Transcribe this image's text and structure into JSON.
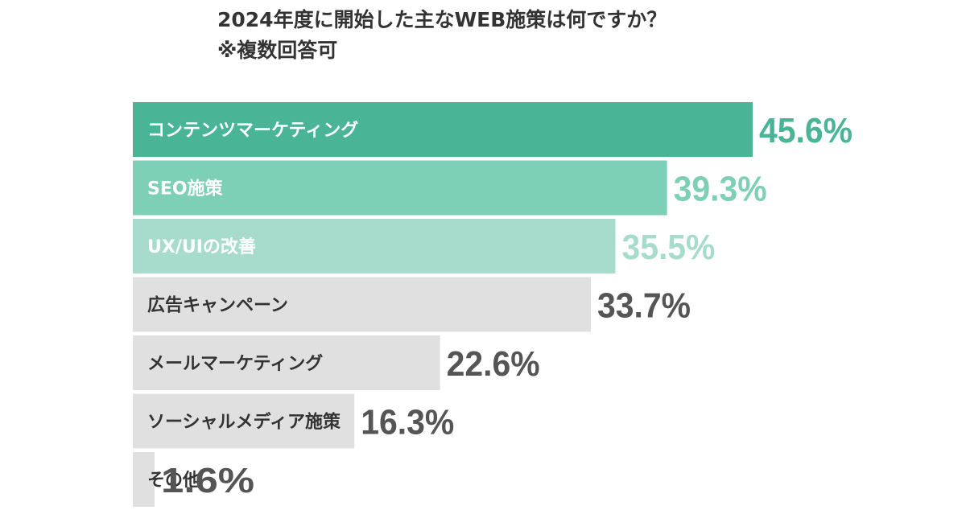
{
  "chart_data": {
    "type": "bar",
    "orientation": "horizontal",
    "title_lines": [
      "2024年度に開始した主なWEB施策は何ですか？",
      "※複数回答可"
    ],
    "categories": [
      "コンテンツマーケティング",
      "SEO施策",
      "UX/UIの改善",
      "広告キャンペーン",
      "メールマーケティング",
      "ソーシャルメディア施策",
      "その他"
    ],
    "values": [
      45.6,
      39.3,
      35.5,
      33.7,
      22.6,
      16.3,
      1.6
    ],
    "value_labels": [
      "45.6%",
      "39.3%",
      "35.5%",
      "33.7%",
      "22.6%",
      "16.3%",
      "1.6%"
    ],
    "unit": "%",
    "xlim": [
      0,
      45.6
    ],
    "grid": false,
    "legend": "none",
    "colors": {
      "bars": [
        "#4ab497",
        "#7dcfb6",
        "#a7dccc",
        "#e0e0e0",
        "#e0e0e0",
        "#e0e0e0",
        "#e0e0e0"
      ],
      "value_labels": [
        "#4ab497",
        "#7dcfb6",
        "#a7dccc",
        "#555555",
        "#555555",
        "#555555",
        "#555555"
      ],
      "category_labels": [
        "#ffffff",
        "#ffffff",
        "#ffffff",
        "#333333",
        "#333333",
        "#333333",
        "#333333"
      ]
    }
  }
}
